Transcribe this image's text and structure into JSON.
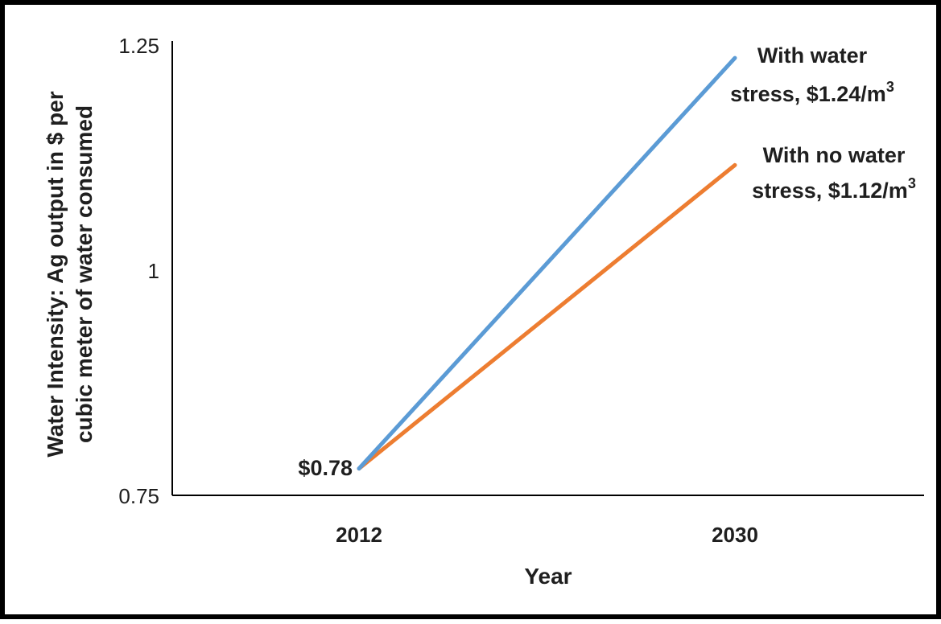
{
  "chart_data": {
    "type": "line",
    "x": [
      "2012",
      "2030"
    ],
    "series": [
      {
        "name": "With water stress",
        "values": [
          0.78,
          1.24
        ],
        "color": "#5B9BD5"
      },
      {
        "name": "With no water stress",
        "values": [
          0.78,
          1.12
        ],
        "color": "#ED7D31"
      }
    ],
    "xlabel": "Year",
    "ylabel_lines": [
      "Water Intensity: Ag output  in $ per",
      "cubic meter of water consumed"
    ],
    "ylim": [
      0.75,
      1.25
    ],
    "yticks": [
      "0.75",
      "1",
      "1.25"
    ],
    "xticks": [
      "2012",
      "2030"
    ],
    "grid": false,
    "annotations": [
      {
        "lines": [
          "With water",
          "stress, $1.24/m",
          "3"
        ],
        "series": "With water stress"
      },
      {
        "lines": [
          "With no water",
          "stress, $1.12/m",
          "3"
        ],
        "series": "With no water stress"
      }
    ],
    "start_label": "$0.78"
  }
}
